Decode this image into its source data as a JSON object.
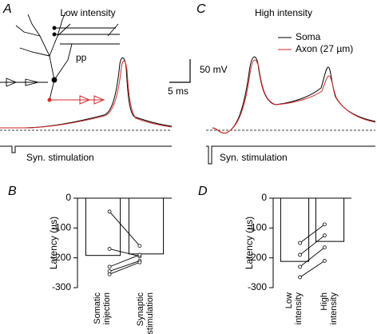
{
  "figure": {
    "panels": [
      {
        "label": "A",
        "title": "Low intensity",
        "inset_label": "pp",
        "stimulus_label": "Syn. stimulation"
      },
      {
        "label": "C",
        "title": "High intensity",
        "stimulus_label": "Syn. stimulation",
        "legend": [
          {
            "name": "Soma",
            "color": "#000000"
          },
          {
            "name": "Axon (27 µm)",
            "color": "#d42a2a"
          }
        ]
      }
    ],
    "scale_bar": {
      "voltage": "50 mV",
      "time": "5 ms"
    }
  },
  "chart_data": [
    {
      "type": "bar",
      "panel_label": "B",
      "ylabel": "Latency (µs)",
      "categories": [
        "Somatic\ninjection",
        "Synaptic\nstimulation"
      ],
      "values": [
        -192,
        -187
      ],
      "ylim": [
        -300,
        0
      ],
      "yticks": [
        0,
        -100,
        -200,
        -300
      ],
      "series": [
        {
          "values": [
            -45,
            -160
          ]
        },
        {
          "values": [
            -170,
            -195
          ]
        },
        {
          "values": [
            -230,
            -190
          ]
        },
        {
          "values": [
            -245,
            -210
          ]
        },
        {
          "values": [
            -255,
            -215
          ]
        }
      ]
    },
    {
      "type": "bar",
      "panel_label": "D",
      "ylabel": "Latency (µs)",
      "categories": [
        "Low\nintensity",
        "High\nintensity"
      ],
      "values": [
        -212,
        -145
      ],
      "ylim": [
        -300,
        0
      ],
      "yticks": [
        0,
        -100,
        -200,
        -300
      ],
      "series": [
        {
          "values": [
            -150,
            -88
          ]
        },
        {
          "values": [
            -190,
            -125
          ]
        },
        {
          "values": [
            -230,
            -165
          ]
        },
        {
          "values": [
            -265,
            -210
          ]
        }
      ]
    }
  ]
}
